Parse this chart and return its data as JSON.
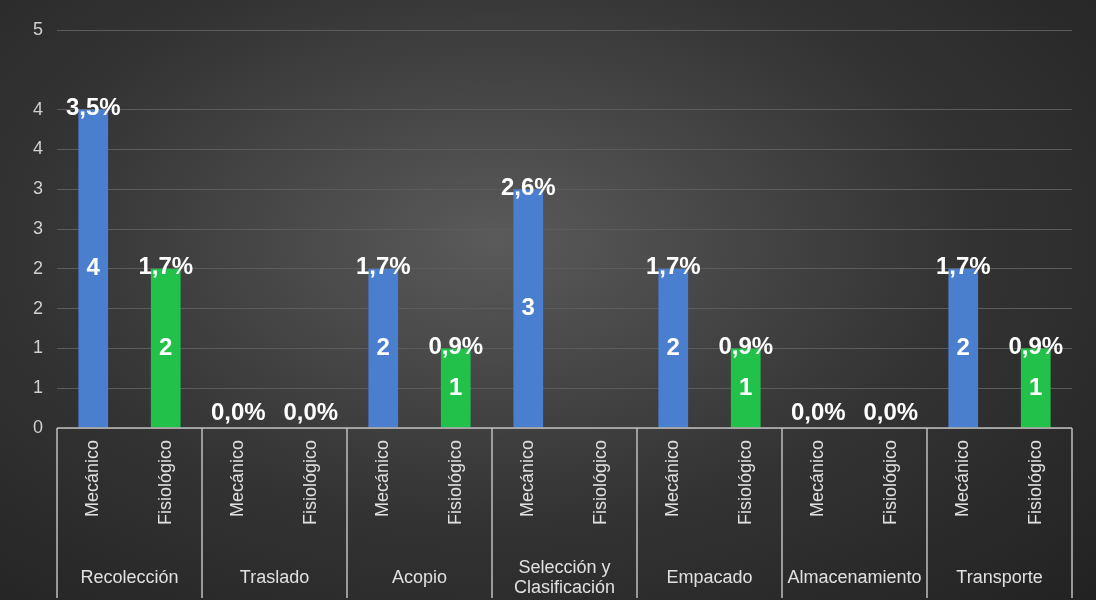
{
  "chart_data": {
    "type": "bar",
    "categories": [
      "Recolección",
      "Traslado",
      "Acopio",
      "Selección y Clasificación",
      "Empacado",
      "Almacenamiento",
      "Transporte"
    ],
    "series": [
      {
        "name": "Mecánico",
        "color": "#4a7fd0",
        "values": [
          4,
          0,
          2,
          3,
          2,
          0,
          2
        ],
        "value_labels": [
          "4",
          null,
          "2",
          "3",
          "2",
          null,
          "2"
        ]
      },
      {
        "name": "Fisiológico",
        "color": "#22c24a",
        "values": [
          2,
          0,
          1,
          null,
          1,
          0,
          1
        ],
        "value_labels": [
          "2",
          null,
          "1",
          null,
          "1",
          null,
          "1"
        ]
      }
    ],
    "annotations": [
      "3,5%",
      "1,7%",
      "0,0%",
      "0,0%",
      "1,7%",
      "0,9%",
      "2,6%",
      "1,7%",
      "0,9%",
      "0,0%",
      "0,0%",
      "1,7%",
      "0,9%"
    ],
    "ylim": [
      0,
      5
    ],
    "yticks": [
      0,
      {
        "value": 0.5,
        "label": "1"
      },
      1,
      {
        "value": 1.5,
        "label": "2"
      },
      2,
      {
        "value": 2.5,
        "label": "3"
      },
      3,
      {
        "value": 3.5,
        "label": "4"
      },
      4,
      5
    ],
    "grid": "y",
    "legend": false
  }
}
